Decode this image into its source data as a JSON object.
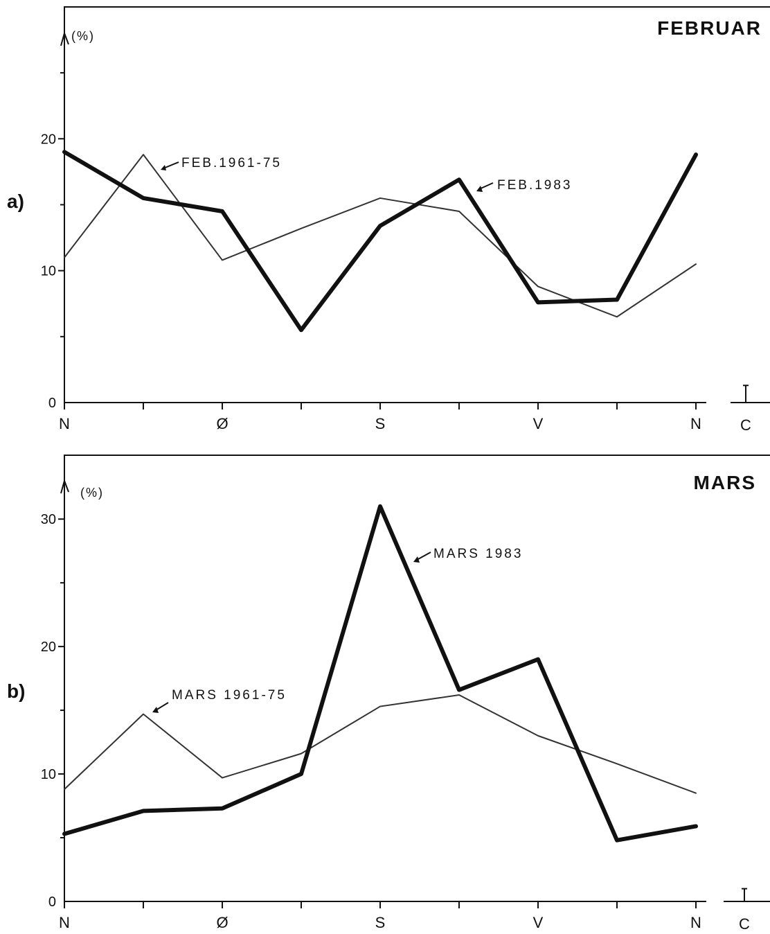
{
  "chart_data": [
    {
      "type": "line",
      "panel_label": "a)",
      "title": "FEBRUAR",
      "unit_label": "(%)",
      "categories": [
        "N",
        "",
        "Ø",
        "",
        "S",
        "",
        "V",
        "",
        "N"
      ],
      "calm_label": "C",
      "ylim": [
        0,
        28
      ],
      "yticks": [
        0,
        10,
        20
      ],
      "grid": false,
      "series": [
        {
          "name": "FEB.1961-75",
          "weight": "thin",
          "values": [
            11,
            18.8,
            10.8,
            13.2,
            15.5,
            14.5,
            8.8,
            6.5,
            10.5
          ],
          "calm": 1.3
        },
        {
          "name": "FEB.1983",
          "weight": "thick",
          "values": [
            19.0,
            15.5,
            14.5,
            5.5,
            13.4,
            16.9,
            7.6,
            7.8,
            18.8
          ],
          "calm": 0
        }
      ],
      "annotations": [
        "FEB.1961-75",
        "FEB.1983"
      ]
    },
    {
      "type": "line",
      "panel_label": "b)",
      "title": "MARS",
      "unit_label": "(%)",
      "categories": [
        "N",
        "",
        "Ø",
        "",
        "S",
        "",
        "V",
        "",
        "N"
      ],
      "calm_label": "C",
      "ylim": [
        0,
        33
      ],
      "yticks": [
        0,
        10,
        20,
        30
      ],
      "grid": false,
      "series": [
        {
          "name": "MARS 1961-75",
          "weight": "thin",
          "values": [
            8.8,
            14.7,
            9.7,
            11.6,
            15.3,
            16.2,
            13.0,
            10.8,
            8.5
          ],
          "calm": 1.0
        },
        {
          "name": "MARS 1983",
          "weight": "thick",
          "values": [
            5.3,
            7.1,
            7.3,
            10.0,
            31.0,
            16.6,
            19.0,
            4.8,
            5.9
          ],
          "calm": 0
        }
      ],
      "annotations": [
        "MARS 1961-75",
        "MARS 1983"
      ]
    }
  ]
}
